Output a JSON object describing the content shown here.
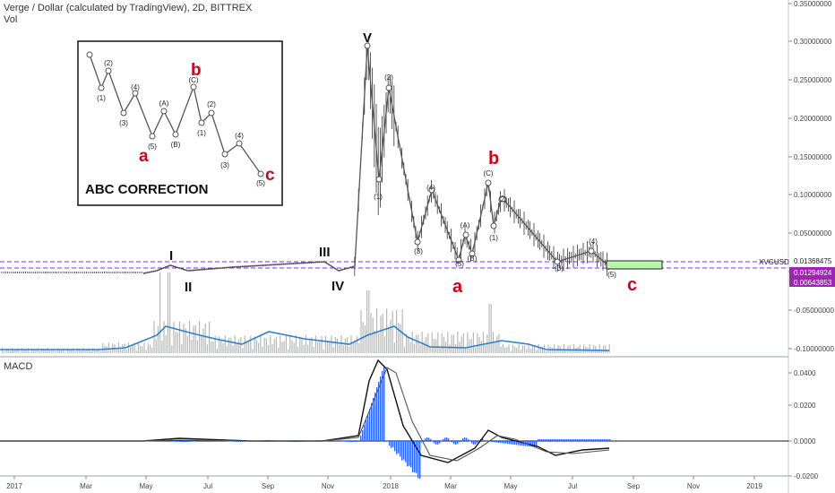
{
  "header": {
    "title": "Verge / Dollar (calculated by TradingView), 2D, BITTREX",
    "vol_label": "Vol"
  },
  "inset": {
    "title": "ABC CORRECTION",
    "labels": [
      "(1)",
      "(2)",
      "(3)",
      "(4)",
      "(5)",
      "(A)",
      "(B)",
      "(C)",
      "(1)",
      "(2)",
      "(3)",
      "(4)",
      "(5)"
    ],
    "letters": [
      "a",
      "b",
      "c"
    ]
  },
  "price_axis": {
    "ticks": [
      "0.35000000",
      "0.30000000",
      "0.25000000",
      "0.20000000",
      "0.15000000",
      "0.10000000",
      "0.05000000",
      "0.00000000",
      "-0.05000000",
      "-0.10000000"
    ],
    "symbol": "XVGUSD",
    "tags": [
      "0.01368475",
      "0.01294924",
      "0.00643853"
    ]
  },
  "macd": {
    "label": "MACD",
    "ticks": [
      "0.0400",
      "0.0200",
      "0.0000",
      "-0.0200"
    ]
  },
  "time_axis": [
    "2017",
    "Mar",
    "May",
    "Jul",
    "Sep",
    "Nov",
    "2018",
    "Mar",
    "May",
    "Jul",
    "Sep",
    "Nov",
    "2019"
  ],
  "wave_labels": {
    "I": "I",
    "II": "II",
    "III": "III",
    "IV": "IV",
    "V": "V",
    "sub": [
      "(1)",
      "(2)",
      "(3)",
      "(4)",
      "(5)",
      "(A)",
      "(B)",
      "(C)",
      "(1)",
      "(2)",
      "(3)",
      "(4)",
      "(5)"
    ],
    "a": "a",
    "b": "b",
    "c": "c"
  },
  "colors": {
    "wave_red": "#d0021b",
    "dash_purple": "#7b2ff7",
    "tag_purple": "#9c27b0",
    "vol_ma": "#2f7fd0",
    "macd_hist": "#2962ff",
    "target_box": "#b9f6a9"
  },
  "chart_data": {
    "type": "line",
    "title": "Verge / Dollar (calculated by TradingView), 2D, BITTREX",
    "xlabel": "",
    "ylabel": "",
    "ylim": [
      -0.1,
      0.35
    ],
    "series": [
      {
        "name": "XVGUSD",
        "x": [
          "2017-01",
          "2017-03",
          "2017-05",
          "2017-06",
          "2017-07",
          "2017-09",
          "2017-11",
          "2017-11-20",
          "2017-12-20",
          "2017-12-28",
          "2018-01-02",
          "2018-01-12",
          "2018-02-05",
          "2018-02-20",
          "2018-03-15",
          "2018-03-28",
          "2018-04-05",
          "2018-04-12",
          "2018-04-25",
          "2018-05-01",
          "2018-05-10",
          "2018-06-10",
          "2018-07-15",
          "2018-08-15",
          "2018-08-22"
        ],
        "values": [
          0.0001,
          0.0002,
          0.005,
          0.012,
          0.008,
          0.01,
          0.018,
          0.005,
          0.29,
          0.08,
          0.24,
          0.09,
          0.035,
          0.1,
          0.015,
          0.05,
          0.027,
          0.028,
          0.12,
          0.055,
          0.088,
          0.04,
          0.018,
          0.03,
          0.0065
        ]
      }
    ],
    "price_tags": [
      0.01368475,
      0.01294924,
      0.00643853
    ],
    "macd": {
      "ylim": [
        -0.02,
        0.045
      ]
    }
  }
}
